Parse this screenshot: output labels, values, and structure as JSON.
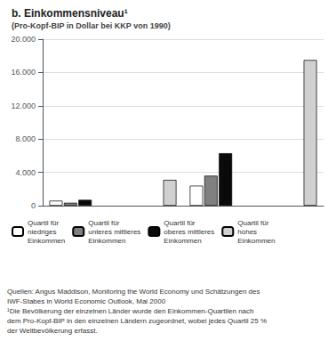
{
  "chart_data": {
    "type": "bar",
    "title": "b. Einkommensniveau¹",
    "subtitle": "(Pro-Kopf-BIP in Dollar bei KKP von 1990)",
    "categories": [
      null,
      null,
      null,
      null
    ],
    "series": [
      {
        "name": "Quartil für\nniedriges\nEinkommen",
        "color": "#ffffff",
        "values": [
          600,
          null,
          2400,
          null
        ]
      },
      {
        "name": "Quartil für\nunteres mittleres\nEinkommen",
        "color": "#808080",
        "values": [
          350,
          null,
          3600,
          null
        ]
      },
      {
        "name": "Quartil für\noberes mittleres\nEinkommen",
        "color": "#0a0a0a",
        "values": [
          700,
          null,
          6300,
          null
        ]
      },
      {
        "name": "Quartil für\nhohes\nEinkommen",
        "color": "#d0d0d0",
        "values": [
          null,
          3100,
          null,
          17500
        ]
      }
    ],
    "ylim": [
      0,
      20000
    ],
    "yticks": [
      0,
      {
        "value": 4000,
        "label": "4.000"
      },
      {
        "value": 8000,
        "label": "8.000"
      },
      {
        "value": 12000,
        "label": "12.000"
      },
      {
        "value": 16000,
        "label": "16.000"
      },
      {
        "value": 20000,
        "label": "20.000"
      }
    ],
    "grid": true,
    "legend": "bottom",
    "tick_labels": "y",
    "annotations": [
      "Quellen: Angus Maddison, Monitoring the World Economy und Schätzungen des",
      "IWF-Stabes in World Economic Outlook, Mai 2000",
      "¹Die Bevölkerung der einzelnen Länder wurde den Einkommen-Quartilen nach",
      "dem Pro-Kopf-BIP in den einzelnen Ländern zugeordnet, wobei jedes Quartil 25 %",
      "der Weltbevölkerung erfasst."
    ]
  }
}
